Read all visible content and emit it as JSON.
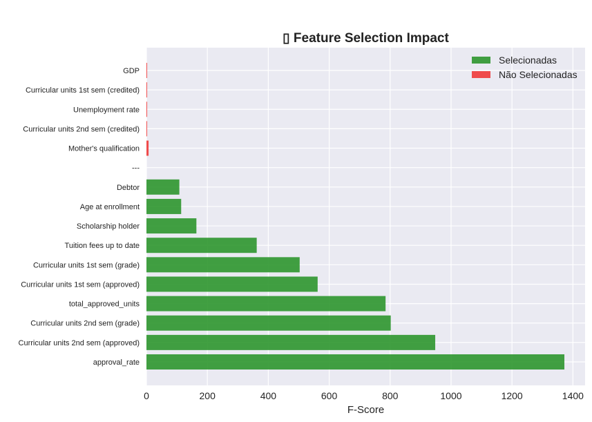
{
  "chart_data": {
    "type": "bar",
    "orientation": "horizontal",
    "title": "▯ Feature Selection Impact",
    "xlabel": "F-Score",
    "ylabel": "",
    "xlim": [
      0,
      1440
    ],
    "xticks": [
      0,
      200,
      400,
      600,
      800,
      1000,
      1200,
      1400
    ],
    "grid": true,
    "legend_position": "top-right",
    "colors": {
      "Selecionadas": "#2e962e",
      "Não Selecionadas": "#f03a3a",
      "background": "#eaeaf2",
      "grid": "#ffffff"
    },
    "categories": [
      "approval_rate",
      "Curricular units 2nd sem (approved)",
      "Curricular units 2nd sem (grade)",
      "total_approved_units",
      "Curricular units 1st sem (approved)",
      "Curricular units 1st sem (grade)",
      "Tuition fees up to date",
      "Scholarship holder",
      "Age at enrollment",
      "Debtor",
      "---",
      "Mother's qualification",
      "Curricular units 2nd sem (credited)",
      "Unemployment rate",
      "Curricular units 1st sem (credited)",
      "GDP"
    ],
    "values": [
      1372,
      948,
      802,
      785,
      562,
      503,
      362,
      164,
      114,
      108,
      0,
      7,
      1.5,
      1.2,
      1.5,
      1.0
    ],
    "groups": [
      "Selecionadas",
      "Selecionadas",
      "Selecionadas",
      "Selecionadas",
      "Selecionadas",
      "Selecionadas",
      "Selecionadas",
      "Selecionadas",
      "Selecionadas",
      "Selecionadas",
      "",
      "Não Selecionadas",
      "Não Selecionadas",
      "Não Selecionadas",
      "Não Selecionadas",
      "Não Selecionadas"
    ],
    "series": [
      {
        "name": "Selecionadas"
      },
      {
        "name": "Não Selecionadas"
      }
    ]
  }
}
